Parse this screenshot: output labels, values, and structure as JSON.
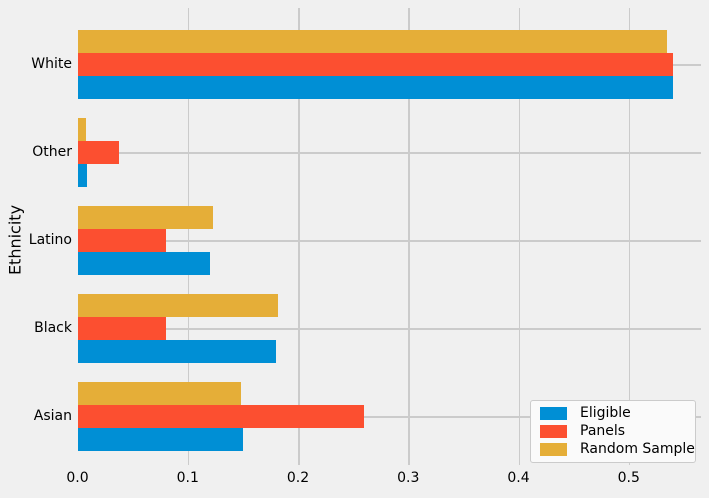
{
  "chart_data": {
    "type": "bar",
    "orientation": "horizontal",
    "ylabel": "Ethnicity",
    "categories": [
      "White",
      "Other",
      "Latino",
      "Black",
      "Asian"
    ],
    "series": [
      {
        "name": "Eligible",
        "color": "#008fd5",
        "values": [
          0.54,
          0.009,
          0.12,
          0.18,
          0.15
        ]
      },
      {
        "name": "Panels",
        "color": "#fc4f30",
        "values": [
          0.54,
          0.038,
          0.08,
          0.08,
          0.26
        ]
      },
      {
        "name": "Random Sample",
        "color": "#e5ae38",
        "values": [
          0.535,
          0.008,
          0.123,
          0.182,
          0.148
        ]
      }
    ],
    "bar_order_top_to_bottom": [
      "Random Sample",
      "Panels",
      "Eligible"
    ],
    "x_ticks": [
      0,
      0.1,
      0.2,
      0.3,
      0.4,
      0.5
    ],
    "x_tick_labels": [
      "0.0",
      "0.1",
      "0.2",
      "0.3",
      "0.4",
      "0.5"
    ],
    "xlim": [
      0,
      0.5655
    ],
    "grid": true,
    "legend": {
      "position": "lower right",
      "entries": [
        "Eligible",
        "Panels",
        "Random Sample"
      ]
    },
    "colors": {
      "background": "#f0f0f0",
      "grid": "#cbcbcb",
      "text": "#000000",
      "legend_background": "#fafafa",
      "legend_border": "#cbcbcb"
    }
  }
}
